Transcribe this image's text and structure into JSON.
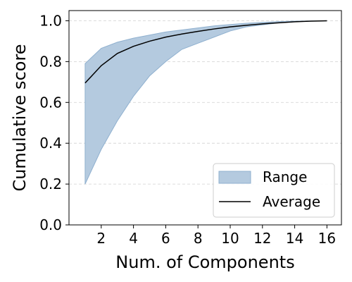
{
  "chart_data": {
    "type": "area",
    "xlabel": "Num. of Components",
    "ylabel": "Cumulative score",
    "xlim": [
      0.0,
      16.9
    ],
    "ylim": [
      0.0,
      1.05
    ],
    "xticks": [
      2,
      4,
      6,
      8,
      10,
      12,
      14,
      16
    ],
    "yticks": [
      0.0,
      0.2,
      0.4,
      0.6,
      0.8,
      1.0
    ],
    "xtick_labels": [
      "2",
      "4",
      "6",
      "8",
      "10",
      "12",
      "14",
      "16"
    ],
    "ytick_labels": [
      "0.0",
      "0.2",
      "0.4",
      "0.6",
      "0.8",
      "1.0"
    ],
    "grid": "horizontal dashed",
    "legend_position": "bottom-right",
    "x": [
      1,
      2,
      3,
      4,
      5,
      6,
      7,
      8,
      9,
      10,
      11,
      12,
      13,
      14,
      15,
      16
    ],
    "series": [
      {
        "name": "Range",
        "kind": "band",
        "color": "#b4cadf",
        "lower": [
          0.2,
          0.37,
          0.51,
          0.63,
          0.73,
          0.8,
          0.86,
          0.89,
          0.92,
          0.95,
          0.97,
          0.98,
          0.99,
          0.995,
          0.998,
          1.0
        ],
        "upper": [
          0.79,
          0.865,
          0.895,
          0.915,
          0.93,
          0.945,
          0.955,
          0.965,
          0.975,
          0.982,
          0.988,
          0.992,
          0.996,
          0.998,
          0.999,
          1.0
        ]
      },
      {
        "name": "Average",
        "kind": "line",
        "color": "#000000",
        "values": [
          0.695,
          0.78,
          0.84,
          0.875,
          0.9,
          0.92,
          0.935,
          0.948,
          0.96,
          0.97,
          0.978,
          0.985,
          0.99,
          0.995,
          0.998,
          1.0
        ]
      }
    ]
  }
}
